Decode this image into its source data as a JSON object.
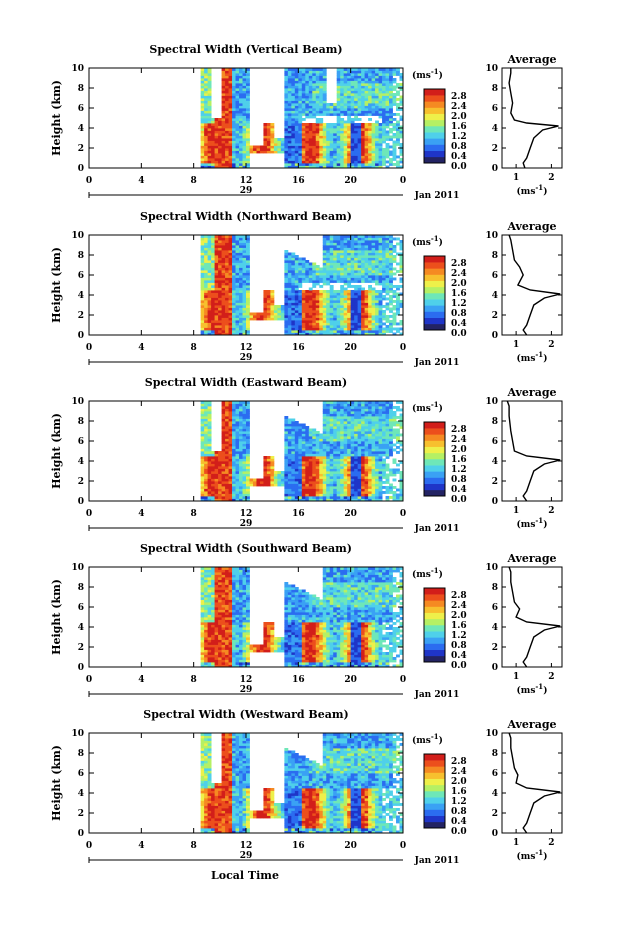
{
  "colors": {
    "scale": [
      "#232363",
      "#1f35c8",
      "#2b6cf0",
      "#3aa1f4",
      "#4fd0ea",
      "#6ee7b8",
      "#b5f064",
      "#eef04a",
      "#f7c02e",
      "#f58a22",
      "#ec4f1c",
      "#d21e1a"
    ],
    "line": "#000000"
  },
  "common": {
    "colorbar_unit_prefix": "(ms",
    "colorbar_unit_exp": "-1",
    "colorbar_unit_suffix": ")",
    "colorbar_ticks": [
      "2.8",
      "2.4",
      "2.0",
      "1.6",
      "1.2",
      "0.8",
      "0.4",
      "0.0"
    ],
    "x_ticks": [
      "0",
      "4",
      "8",
      "12",
      "16",
      "20",
      "0"
    ],
    "y_ticks": [
      "0",
      "2",
      "4",
      "6",
      "8",
      "10"
    ],
    "y_label": "Height (km)",
    "date_label": "Jan 2011",
    "day_label": "29",
    "avg_title": "Average",
    "avg_xlabel_prefix": "(ms",
    "avg_xlabel_exp": "-1",
    "avg_xlabel_suffix": ")",
    "x_axis_title": "Local Time"
  },
  "chart_data": [
    {
      "type": "heatmap",
      "title": "Spectral Width (Vertical Beam)",
      "xlabel": "",
      "ylabel": "Height (km)",
      "xlim": [
        0,
        24
      ],
      "ylim": [
        0,
        10
      ],
      "colorbar_range": [
        0.0,
        2.8
      ],
      "avg": {
        "xticks": [
          "1",
          "2"
        ],
        "xlim": [
          0.6,
          2.3
        ],
        "profile": [
          [
            1.25,
            0
          ],
          [
            1.2,
            0.5
          ],
          [
            1.3,
            1
          ],
          [
            1.4,
            2
          ],
          [
            1.5,
            3
          ],
          [
            1.75,
            3.8
          ],
          [
            2.2,
            4.2
          ],
          [
            1.3,
            4.5
          ],
          [
            0.95,
            4.8
          ],
          [
            0.85,
            5.5
          ],
          [
            0.9,
            6.5
          ],
          [
            0.85,
            7.5
          ],
          [
            0.8,
            8.5
          ],
          [
            0.85,
            9.5
          ],
          [
            0.85,
            10
          ]
        ]
      }
    },
    {
      "type": "heatmap",
      "title": "Spectral Width (Northward Beam)",
      "xlabel": "",
      "ylabel": "Height (km)",
      "xlim": [
        0,
        24
      ],
      "ylim": [
        0,
        10
      ],
      "colorbar_range": [
        0.0,
        2.8
      ],
      "avg": {
        "xticks": [
          "1",
          "2"
        ],
        "xlim": [
          0.6,
          2.3
        ],
        "profile": [
          [
            1.3,
            0
          ],
          [
            1.2,
            0.5
          ],
          [
            1.3,
            1
          ],
          [
            1.4,
            2
          ],
          [
            1.5,
            3
          ],
          [
            1.8,
            3.7
          ],
          [
            2.25,
            4.1
          ],
          [
            1.4,
            4.5
          ],
          [
            1.05,
            5
          ],
          [
            1.2,
            6
          ],
          [
            1.1,
            6.8
          ],
          [
            0.95,
            7.5
          ],
          [
            0.9,
            8.5
          ],
          [
            0.85,
            9.5
          ],
          [
            0.8,
            10
          ]
        ]
      }
    },
    {
      "type": "heatmap",
      "title": "Spectral Width (Eastward Beam)",
      "xlabel": "",
      "ylabel": "Height (km)",
      "xlim": [
        0,
        24
      ],
      "ylim": [
        0,
        10
      ],
      "colorbar_range": [
        0.0,
        2.8
      ],
      "avg": {
        "xticks": [
          "1",
          "2"
        ],
        "xlim": [
          0.6,
          2.3
        ],
        "profile": [
          [
            1.3,
            0
          ],
          [
            1.2,
            0.5
          ],
          [
            1.3,
            1
          ],
          [
            1.4,
            2
          ],
          [
            1.5,
            3
          ],
          [
            1.8,
            3.7
          ],
          [
            2.25,
            4.1
          ],
          [
            1.3,
            4.5
          ],
          [
            0.95,
            5
          ],
          [
            0.9,
            6
          ],
          [
            0.85,
            7
          ],
          [
            0.8,
            8.5
          ],
          [
            0.8,
            9.5
          ],
          [
            0.75,
            10
          ]
        ]
      }
    },
    {
      "type": "heatmap",
      "title": "Spectral Width (Southward Beam)",
      "xlabel": "",
      "ylabel": "Height (km)",
      "xlim": [
        0,
        24
      ],
      "ylim": [
        0,
        10
      ],
      "colorbar_range": [
        0.0,
        2.8
      ],
      "avg": {
        "xticks": [
          "1",
          "2"
        ],
        "xlim": [
          0.6,
          2.3
        ],
        "profile": [
          [
            1.3,
            0
          ],
          [
            1.2,
            0.5
          ],
          [
            1.3,
            1
          ],
          [
            1.4,
            2
          ],
          [
            1.5,
            3
          ],
          [
            1.8,
            3.7
          ],
          [
            2.25,
            4.1
          ],
          [
            1.3,
            4.5
          ],
          [
            1.0,
            5
          ],
          [
            1.1,
            5.8
          ],
          [
            0.95,
            6.5
          ],
          [
            0.9,
            7.5
          ],
          [
            0.85,
            8.5
          ],
          [
            0.85,
            9.5
          ],
          [
            0.8,
            10
          ]
        ]
      }
    },
    {
      "type": "heatmap",
      "title": "Spectral Width (Westward Beam)",
      "xlabel": "",
      "ylabel": "Height (km)",
      "xlim": [
        0,
        24
      ],
      "ylim": [
        0,
        10
      ],
      "colorbar_range": [
        0.0,
        2.8
      ],
      "avg": {
        "xticks": [
          "1",
          "2"
        ],
        "xlim": [
          0.6,
          2.3
        ],
        "profile": [
          [
            1.3,
            0
          ],
          [
            1.2,
            0.5
          ],
          [
            1.3,
            1
          ],
          [
            1.4,
            2
          ],
          [
            1.5,
            3
          ],
          [
            1.8,
            3.7
          ],
          [
            2.25,
            4.1
          ],
          [
            1.3,
            4.5
          ],
          [
            1.0,
            5
          ],
          [
            1.05,
            5.8
          ],
          [
            0.95,
            6.5
          ],
          [
            0.9,
            7.5
          ],
          [
            0.85,
            8.5
          ],
          [
            0.85,
            9.5
          ],
          [
            0.8,
            10
          ]
        ]
      }
    }
  ]
}
